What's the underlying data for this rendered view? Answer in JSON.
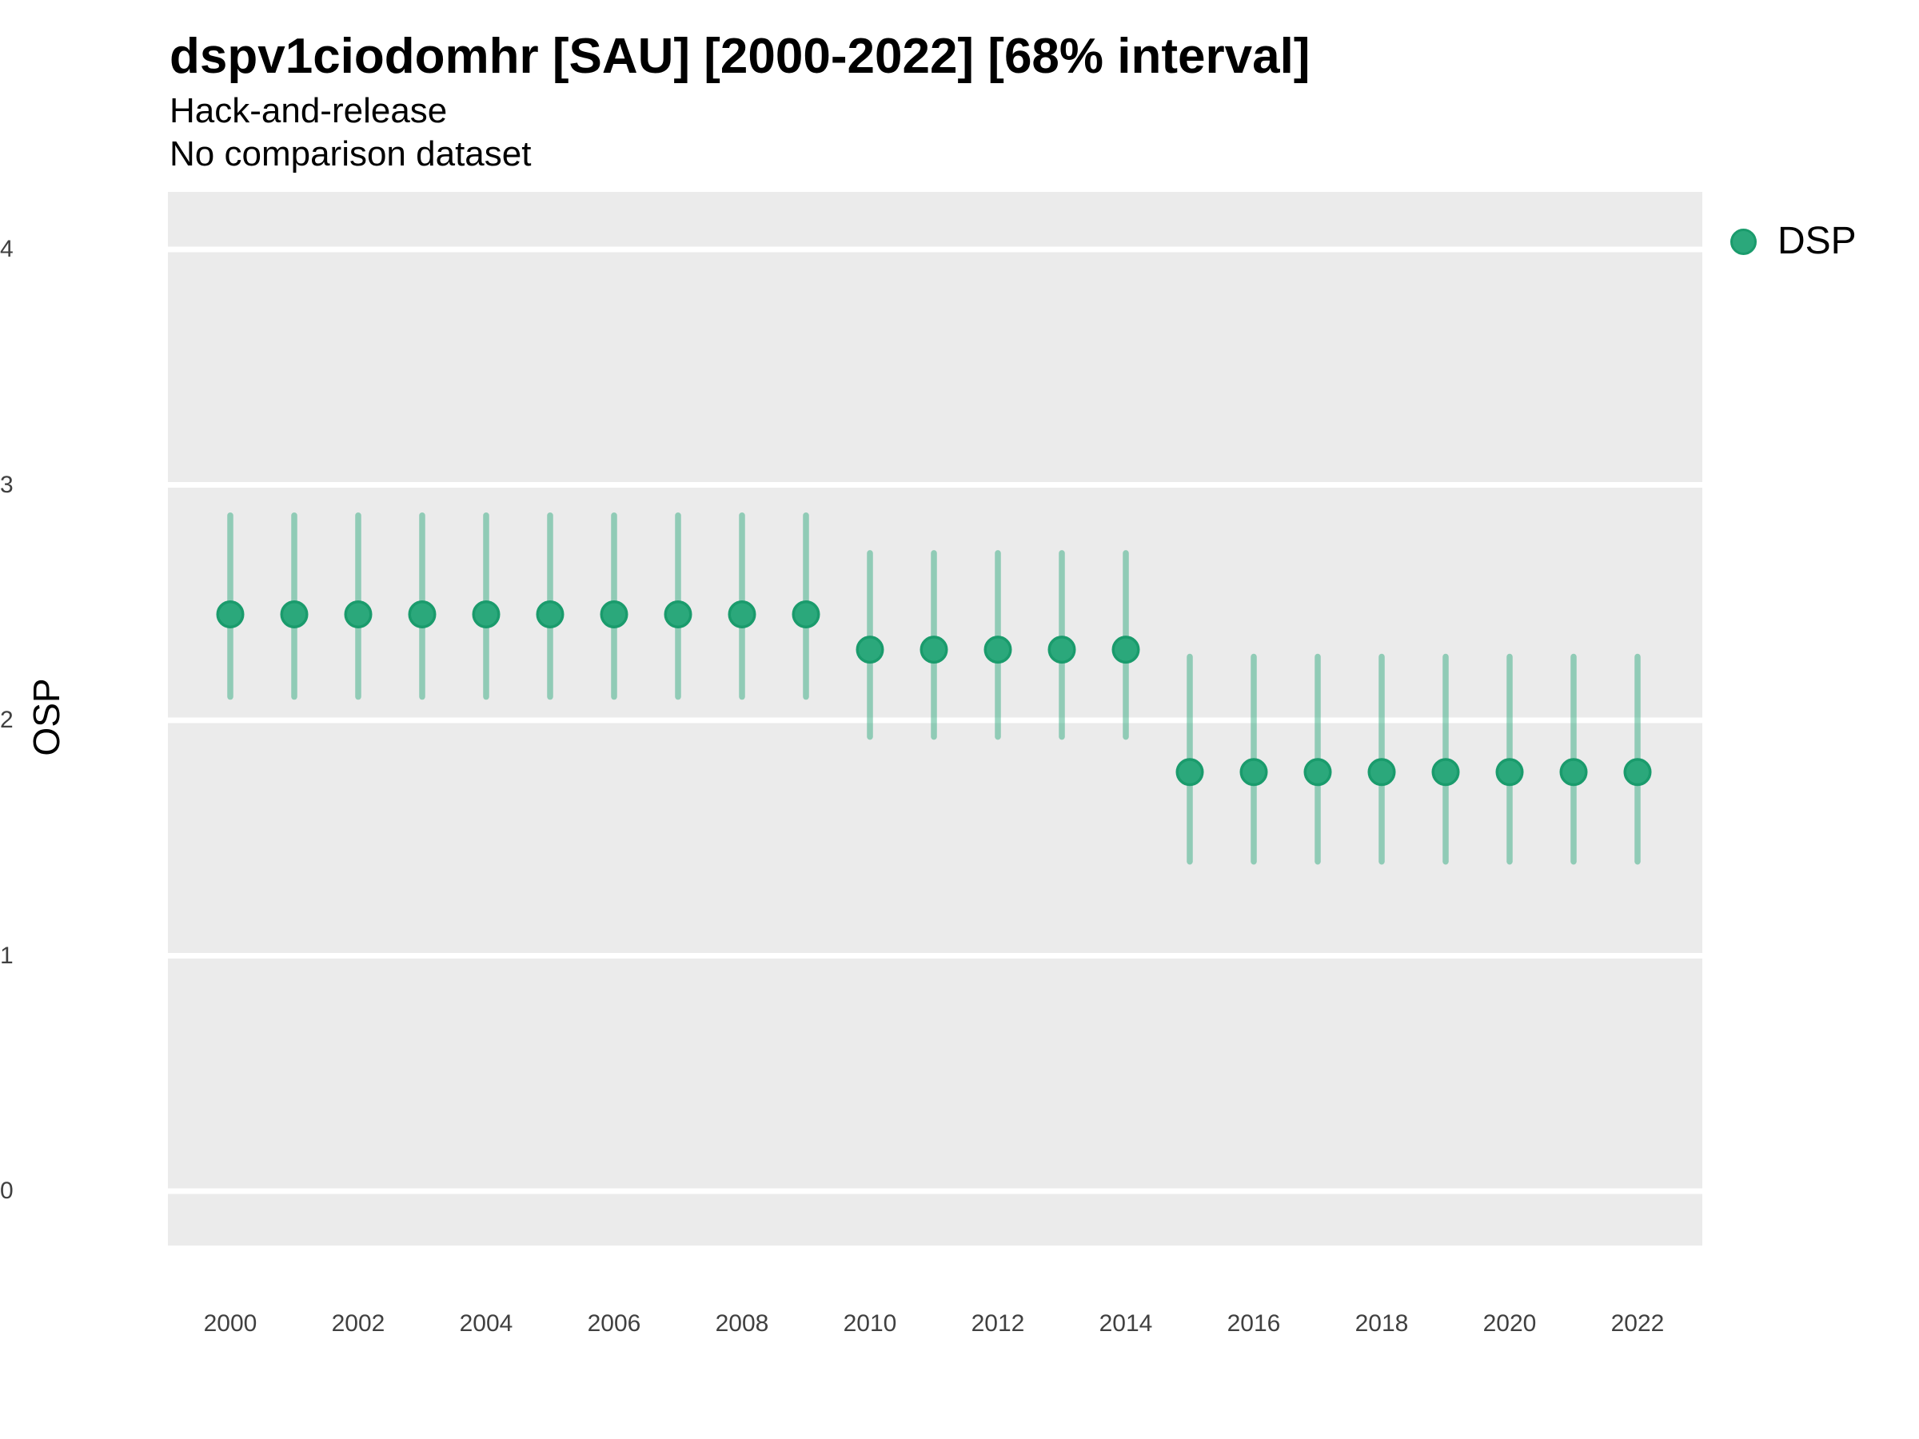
{
  "colors": {
    "point_fill": "#2BA87B",
    "point_stroke": "#1A9B6C",
    "interval_stroke": "#2BA87B",
    "interval_opacity": 0.47,
    "panel_background": "#EBEBEB",
    "gridline": "#FFFFFF",
    "tick_text": "#404040",
    "title_text": "#000000"
  },
  "chart_data": {
    "type": "scatter",
    "subtype": "pointrange",
    "title": "dspv1ciodomhr [SAU] [2000-2022] [68% interval]",
    "subtitle": "Hack-and-release",
    "caption": "No comparison dataset",
    "xlabel": "",
    "ylabel": "OSP",
    "interval_label": "68% interval",
    "xlim": [
      1999,
      2023
    ],
    "ylim": [
      -0.24,
      4.25
    ],
    "xticks": [
      2000,
      2002,
      2004,
      2006,
      2008,
      2010,
      2012,
      2014,
      2016,
      2018,
      2020,
      2022
    ],
    "yticks": [
      0,
      1,
      2,
      3,
      4
    ],
    "grid": "major-white-on-gray-panel",
    "legend_position": "top-right-outside",
    "series": [
      {
        "name": "DSP",
        "marker": "circle",
        "color": "#2BA87B",
        "x": [
          2000,
          2001,
          2002,
          2003,
          2004,
          2005,
          2006,
          2007,
          2008,
          2009,
          2010,
          2011,
          2012,
          2013,
          2014,
          2015,
          2016,
          2017,
          2018,
          2019,
          2020,
          2021,
          2022
        ],
        "y": [
          2.45,
          2.45,
          2.45,
          2.45,
          2.45,
          2.45,
          2.45,
          2.45,
          2.45,
          2.45,
          2.3,
          2.3,
          2.3,
          2.3,
          2.3,
          1.78,
          1.78,
          1.78,
          1.78,
          1.78,
          1.78,
          1.78,
          1.78
        ],
        "y_lo": [
          2.1,
          2.1,
          2.1,
          2.1,
          2.1,
          2.1,
          2.1,
          2.1,
          2.1,
          2.1,
          1.93,
          1.93,
          1.93,
          1.93,
          1.93,
          1.4,
          1.4,
          1.4,
          1.4,
          1.4,
          1.4,
          1.4,
          1.4
        ],
        "y_hi": [
          2.87,
          2.87,
          2.87,
          2.87,
          2.87,
          2.87,
          2.87,
          2.87,
          2.87,
          2.87,
          2.71,
          2.71,
          2.71,
          2.71,
          2.71,
          2.27,
          2.27,
          2.27,
          2.27,
          2.27,
          2.27,
          2.27,
          2.27
        ]
      }
    ]
  }
}
